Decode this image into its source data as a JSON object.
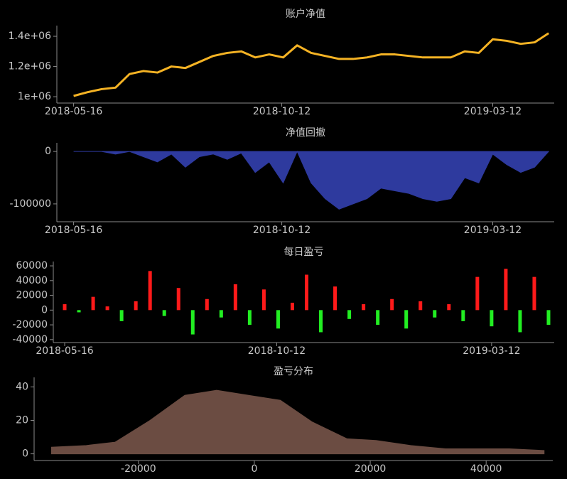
{
  "chart_data": [
    {
      "type": "line",
      "title": "账户净值",
      "color": "#f5b324",
      "x": [
        "2018-05-16",
        "2018-05-26",
        "2018-06-05",
        "2018-06-15",
        "2018-06-25",
        "2018-07-05",
        "2018-07-15",
        "2018-07-25",
        "2018-08-04",
        "2018-08-14",
        "2018-08-24",
        "2018-09-03",
        "2018-09-13",
        "2018-09-23",
        "2018-10-03",
        "2018-10-13",
        "2018-10-23",
        "2018-11-02",
        "2018-11-12",
        "2018-11-22",
        "2018-12-02",
        "2018-12-12",
        "2018-12-22",
        "2019-01-01",
        "2019-01-11",
        "2019-01-21",
        "2019-01-31",
        "2019-02-10",
        "2019-02-20",
        "2019-03-02",
        "2019-03-12",
        "2019-03-22",
        "2019-04-01",
        "2019-04-11",
        "2019-04-21"
      ],
      "values": [
        1005000,
        1030000,
        1050000,
        1060000,
        1150000,
        1170000,
        1160000,
        1200000,
        1190000,
        1230000,
        1270000,
        1290000,
        1300000,
        1260000,
        1280000,
        1260000,
        1340000,
        1290000,
        1270000,
        1250000,
        1250000,
        1260000,
        1280000,
        1280000,
        1270000,
        1260000,
        1260000,
        1260000,
        1300000,
        1290000,
        1380000,
        1370000,
        1350000,
        1360000,
        1420000
      ],
      "xlim": [
        "2018-05-04",
        "2019-04-25"
      ],
      "xticks": [
        "2018-05-16",
        "2018-10-12",
        "2019-03-12"
      ],
      "ylim": [
        958000,
        1452000
      ],
      "yticks": [
        {
          "value": 1000000,
          "label": "1e+06"
        },
        {
          "value": 1200000,
          "label": "1.2e+06"
        },
        {
          "value": 1400000,
          "label": "1.4e+06"
        }
      ]
    },
    {
      "type": "area",
      "title": "净值回撤",
      "color": "#2e3a9e",
      "x": [
        "2018-05-16",
        "2018-05-26",
        "2018-06-05",
        "2018-06-15",
        "2018-06-25",
        "2018-07-05",
        "2018-07-15",
        "2018-07-25",
        "2018-08-04",
        "2018-08-14",
        "2018-08-24",
        "2018-09-03",
        "2018-09-13",
        "2018-09-23",
        "2018-10-03",
        "2018-10-13",
        "2018-10-23",
        "2018-11-02",
        "2018-11-12",
        "2018-11-22",
        "2018-12-02",
        "2018-12-12",
        "2018-12-22",
        "2019-01-01",
        "2019-01-11",
        "2019-01-21",
        "2019-01-31",
        "2019-02-10",
        "2019-02-20",
        "2019-03-02",
        "2019-03-12",
        "2019-03-22",
        "2019-04-01",
        "2019-04-11",
        "2019-04-21"
      ],
      "values": [
        0,
        0,
        0,
        -5000,
        0,
        -10000,
        -20000,
        -5000,
        -30000,
        -10000,
        -5000,
        -15000,
        -3000,
        -40000,
        -20000,
        -60000,
        0,
        -60000,
        -90000,
        -110000,
        -100000,
        -90000,
        -70000,
        -75000,
        -80000,
        -90000,
        -95000,
        -90000,
        -50000,
        -60000,
        -5000,
        -25000,
        -40000,
        -30000,
        0
      ],
      "xlim": [
        "2018-05-04",
        "2019-04-25"
      ],
      "xticks": [
        "2018-05-16",
        "2018-10-12",
        "2019-03-12"
      ],
      "ylim": [
        -134000,
        11000
      ],
      "yticks": [
        0,
        -100000
      ]
    },
    {
      "type": "bar",
      "title": "每日盈亏",
      "positive_color": "#ff1a1a",
      "negative_color": "#22ee22",
      "x": [
        "2018-05-16",
        "2018-05-26",
        "2018-06-05",
        "2018-06-15",
        "2018-06-25",
        "2018-07-05",
        "2018-07-15",
        "2018-07-25",
        "2018-08-04",
        "2018-08-14",
        "2018-08-24",
        "2018-09-03",
        "2018-09-13",
        "2018-09-23",
        "2018-10-03",
        "2018-10-13",
        "2018-10-23",
        "2018-11-02",
        "2018-11-12",
        "2018-11-22",
        "2018-12-02",
        "2018-12-12",
        "2018-12-22",
        "2019-01-01",
        "2019-01-11",
        "2019-01-21",
        "2019-01-31",
        "2019-02-10",
        "2019-02-20",
        "2019-03-02",
        "2019-03-12",
        "2019-03-22",
        "2019-04-01",
        "2019-04-11",
        "2019-04-21"
      ],
      "values": [
        8000,
        -3000,
        18000,
        5000,
        -15000,
        12000,
        53000,
        -8000,
        30000,
        -33000,
        15000,
        -10000,
        35000,
        -20000,
        28000,
        -25000,
        10000,
        48000,
        -30000,
        32000,
        -12000,
        8000,
        -20000,
        15000,
        -25000,
        12000,
        -10000,
        8000,
        -15000,
        45000,
        -22000,
        56000,
        -30000,
        45000,
        -20000
      ],
      "xlim": [
        "2018-05-08",
        "2019-04-25"
      ],
      "xticks": [
        "2018-05-16",
        "2018-10-12",
        "2019-03-12"
      ],
      "ylim": [
        -44000,
        62000
      ],
      "yticks": [
        60000,
        40000,
        20000,
        0,
        -20000,
        -40000
      ]
    },
    {
      "type": "area",
      "title": "盈亏分布",
      "color": "#6b4c42",
      "x": [
        -35000,
        -29000,
        -24000,
        -18000,
        -12000,
        -6500,
        -1000,
        4500,
        10000,
        16000,
        21000,
        27000,
        33000,
        38000,
        44000,
        50000
      ],
      "values": [
        4,
        5,
        7,
        20,
        35,
        38,
        35,
        32,
        19,
        9,
        8,
        5,
        3,
        3,
        3,
        2
      ],
      "xlim": [
        -38000,
        51500
      ],
      "xticks": [
        -20000,
        0,
        20000,
        40000
      ],
      "ylim": [
        -4,
        44
      ],
      "yticks": [
        0,
        20,
        40
      ]
    }
  ]
}
